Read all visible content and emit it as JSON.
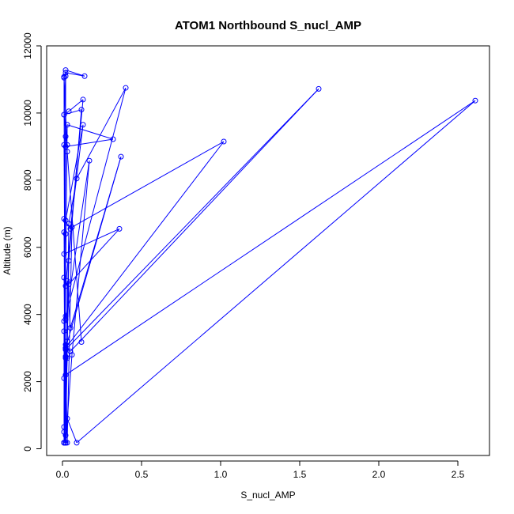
{
  "chart_data": {
    "type": "line",
    "title": "ATOM1 Northbound S_nucl_AMP",
    "xlabel": "S_nucl_AMP",
    "ylabel": "Altitude (m)",
    "xlim": [
      -0.1,
      2.7
    ],
    "ylim": [
      -200,
      12000
    ],
    "xticks": [
      0.0,
      0.5,
      1.0,
      1.5,
      2.0,
      2.5
    ],
    "xtick_labels": [
      "0.0",
      "0.5",
      "1.0",
      "1.5",
      "2.0",
      "2.5"
    ],
    "yticks": [
      0,
      2000,
      4000,
      6000,
      8000,
      10000,
      12000
    ],
    "ytick_labels": [
      "0",
      "2000",
      "4000",
      "6000",
      "8000",
      "10000",
      "12000"
    ],
    "grid": false,
    "series_color": "#0000ff",
    "marker": "open-circle",
    "x": [
      0.01,
      0.02,
      0.03,
      0.09,
      2.61,
      0.02,
      0.01,
      0.03,
      0.02,
      0.05,
      1.62,
      0.02,
      0.03,
      0.01,
      0.02,
      0.06,
      0.17,
      0.02,
      0.01,
      0.01,
      0.02,
      0.03,
      0.06,
      1.02,
      0.02,
      0.01,
      0.02,
      0.04,
      0.09,
      0.4,
      0.02,
      0.01,
      0.02,
      0.03,
      0.05,
      0.37,
      0.02,
      0.01,
      0.02,
      0.01,
      0.04,
      0.36,
      0.01,
      0.02,
      0.01,
      0.05,
      0.13,
      0.02,
      0.01,
      0.02,
      0.04,
      0.12,
      0.01,
      0.03,
      0.02,
      0.01,
      0.03,
      0.32,
      0.02,
      0.01,
      0.02,
      0.01,
      0.02,
      0.14,
      0.02,
      0.01,
      0.02,
      0.01,
      0.04,
      0.13,
      0.02,
      0.01,
      0.02,
      0.01,
      0.03,
      0.12
    ],
    "y": [
      180,
      400,
      900,
      180,
      10370,
      2200,
      2100,
      3200,
      3100,
      2900,
      10720,
      2950,
      2700,
      500,
      180,
      2800,
      8580,
      3850,
      3500,
      180,
      2750,
      180,
      6600,
      9150,
      3000,
      650,
      180,
      6700,
      8050,
      10750,
      3950,
      3800,
      180,
      5000,
      3600,
      8700,
      3000,
      180,
      2700,
      180,
      4900,
      6550,
      5800,
      6400,
      6850,
      6550,
      9650,
      6800,
      6450,
      180,
      5600,
      10100,
      9950,
      9050,
      9300,
      180,
      9650,
      9220,
      9000,
      9050,
      180,
      11050,
      11200,
      11100,
      11280,
      180,
      11100,
      9950,
      10050,
      10400,
      4850,
      5100,
      180,
      11080,
      8850,
      3180
    ]
  }
}
